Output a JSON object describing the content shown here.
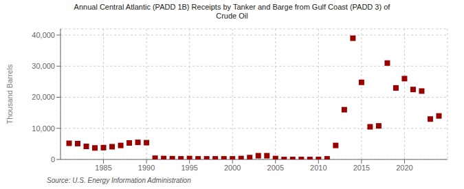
{
  "chart_data": {
    "type": "scatter",
    "title": "Annual Central Atlantic (PADD 1B) Receipts by Tanker and Barge from Gulf Coast (PADD 3) of\nCrude Oil",
    "y_label": "Thousand Barrels",
    "annotations": [
      "Source: U.S. Energy Information Administration"
    ],
    "x": [
      1981,
      1982,
      1983,
      1984,
      1985,
      1986,
      1987,
      1988,
      1989,
      1990,
      1991,
      1992,
      1993,
      1994,
      1995,
      1996,
      1997,
      1998,
      1999,
      2000,
      2001,
      2002,
      2003,
      2004,
      2005,
      2006,
      2007,
      2008,
      2009,
      2010,
      2011,
      2012,
      2013,
      2014,
      2015,
      2016,
      2017,
      2018,
      2019,
      2020,
      2021,
      2022,
      2023,
      2024
    ],
    "values": [
      5200,
      5100,
      4200,
      3700,
      3800,
      4100,
      4500,
      5300,
      5500,
      5400,
      400,
      300,
      250,
      200,
      300,
      200,
      200,
      200,
      200,
      200,
      300,
      600,
      1200,
      1200,
      300,
      0,
      0,
      0,
      0,
      0,
      200,
      4500,
      16000,
      39000,
      24800,
      10500,
      10800,
      31000,
      23000,
      26000,
      22500,
      22000,
      13000,
      14000
    ],
    "color": "#990000",
    "marker": "square",
    "xlim": [
      1980,
      2025
    ],
    "xticks": [
      1985,
      1990,
      1995,
      2000,
      2005,
      2010,
      2015,
      2020
    ],
    "ylim": [
      0,
      42000
    ],
    "yticks": [
      0,
      {
        "value": 10000,
        "label": "10,000"
      },
      {
        "value": 20000,
        "label": "20,000"
      },
      {
        "value": 30000,
        "label": "30,000"
      },
      {
        "value": 40000,
        "label": "40,000"
      }
    ],
    "grid": true
  }
}
